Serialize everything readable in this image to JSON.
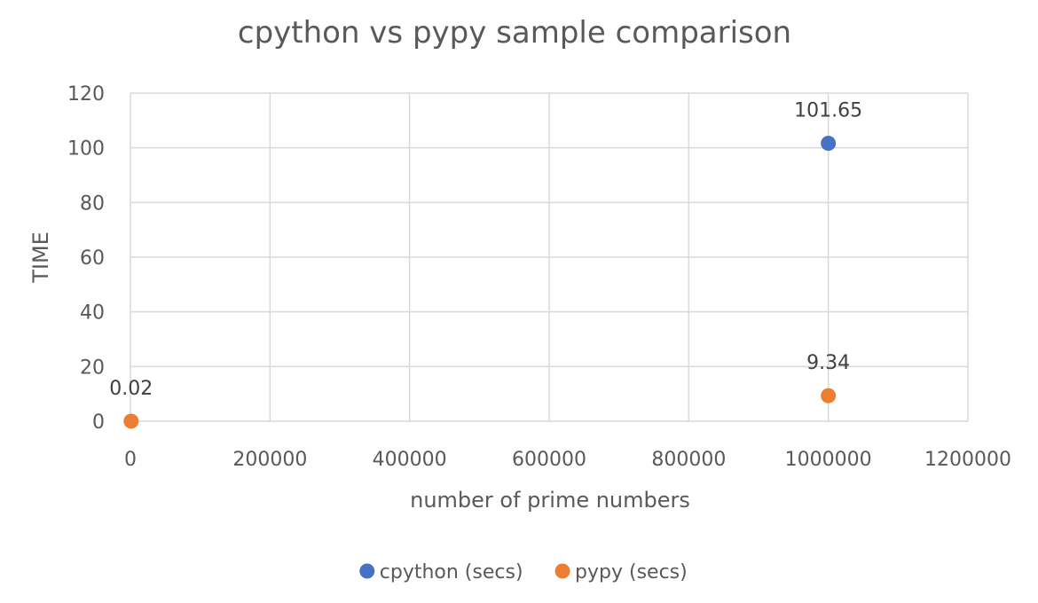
{
  "chart_data": {
    "type": "scatter",
    "title": "cpython vs pypy sample comparison",
    "xlabel": "number of prime numbers",
    "ylabel": "TIME",
    "xlim": [
      0,
      1200000
    ],
    "ylim": [
      0,
      120
    ],
    "x_ticks": [
      "0",
      "200000",
      "400000",
      "600000",
      "800000",
      "1000000",
      "1200000"
    ],
    "y_ticks": [
      "0",
      "20",
      "40",
      "60",
      "80",
      "100",
      "120"
    ],
    "grid": true,
    "legend_position": "bottom",
    "series": [
      {
        "name": "cpython (secs)",
        "color": "#4472C4",
        "points": [
          {
            "x": 1000000,
            "y": 101.65,
            "label": "101.65"
          }
        ]
      },
      {
        "name": "pypy (secs)",
        "color": "#ED7D31",
        "points": [
          {
            "x": 1000,
            "y": 0.02,
            "label": "0.02"
          },
          {
            "x": 1000000,
            "y": 9.34,
            "label": "9.34"
          }
        ]
      }
    ]
  }
}
